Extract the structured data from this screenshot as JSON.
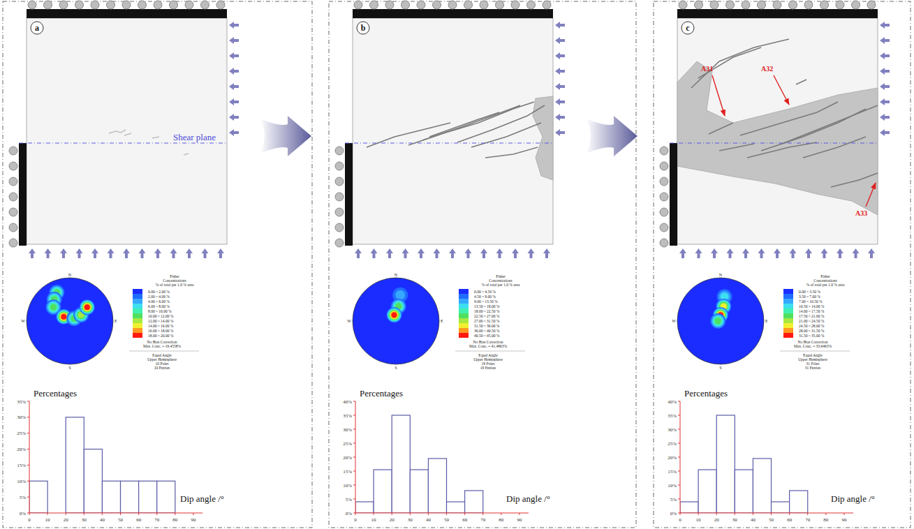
{
  "figure": {
    "panels": [
      {
        "letter": "a",
        "shear_plane_label": "Shear plane"
      },
      {
        "letter": "b"
      },
      {
        "letter": "c",
        "annotations": [
          "A31",
          "A32",
          "A33"
        ]
      }
    ]
  },
  "stereonets": [
    {
      "legend_title": [
        "Fisher",
        "Concentrations",
        "% of total per 1.0 % area"
      ],
      "legend_ranges": [
        "0.00 ~ 2.00 %",
        "2.00 ~ 4.00 %",
        "4.00 ~ 6.00 %",
        "6.00 ~ 8.00 %",
        "8.00 ~ 10.00 %",
        "10.00 ~ 12.00 %",
        "12.00 ~ 14.00 %",
        "14.00 ~ 16.00 %",
        "16.00 ~ 18.00 %",
        "18.00 ~ 20.00 %"
      ],
      "levels": [
        0,
        2,
        4,
        6,
        8,
        10,
        12,
        14,
        16,
        18,
        20
      ],
      "correction": "No Bias Correction",
      "max_conc": "Max. Conc. = 19.4558%",
      "projection": "Equal Angle",
      "hemisphere": "Upper Hemisphere",
      "poles": "10 Poles",
      "entries": "10 Entries",
      "directions": [
        "N",
        "E",
        "S",
        "W"
      ],
      "spots": [
        {
          "x": -0.3,
          "y": 0.66,
          "value": 10
        },
        {
          "x": -0.36,
          "y": 0.5,
          "value": 11
        },
        {
          "x": -0.38,
          "y": 0.32,
          "value": 10
        },
        {
          "x": -0.14,
          "y": 0.1,
          "value": 19
        },
        {
          "x": 0.1,
          "y": 0.06,
          "value": 10
        },
        {
          "x": 0.26,
          "y": 0.14,
          "value": 12
        },
        {
          "x": 0.4,
          "y": 0.32,
          "value": 19
        }
      ]
    },
    {
      "legend_title": [
        "Fisher",
        "Concentrations",
        "% of total per 1.0 % area"
      ],
      "legend_ranges": [
        "0.00 ~ 4.50 %",
        "4.50 ~ 9.00 %",
        "9.00 ~ 13.50 %",
        "13.50 ~ 18.00 %",
        "18.00 ~ 22.50 %",
        "22.50 ~ 27.00 %",
        "27.00 ~ 31.50 %",
        "31.50 ~ 36.00 %",
        "36.00 ~ 40.50 %",
        "40.50 ~ 45.00 %"
      ],
      "levels": [
        0,
        4.5,
        9,
        13.5,
        18,
        22.5,
        27,
        31.5,
        36,
        40.5,
        45
      ],
      "correction": "No Bias Correction",
      "max_conc": "Max. Conc. = 41.4863%",
      "projection": "Equal Angle",
      "hemisphere": "Upper Hemisphere",
      "poles": "19 Poles",
      "entries": "19 Entries",
      "directions": [
        "N",
        "E",
        "S",
        "W"
      ],
      "spots": [
        {
          "x": 0.1,
          "y": 0.6,
          "value": 12
        },
        {
          "x": 0.06,
          "y": 0.34,
          "value": 26
        },
        {
          "x": -0.04,
          "y": 0.14,
          "value": 41
        }
      ]
    },
    {
      "legend_title": [
        "Fisher",
        "Concentrations",
        "% of total per 1.0 % area"
      ],
      "legend_ranges": [
        "0.00 ~ 3.50 %",
        "3.50 ~ 7.00 %",
        "7.00 ~ 10.50 %",
        "10.50 ~ 14.00 %",
        "14.00 ~ 17.50 %",
        "17.50 ~ 21.00 %",
        "21.00 ~ 24.50 %",
        "24.50 ~ 28.00 %",
        "28.00 ~ 31.50 %",
        "31.50 ~ 35.00 %"
      ],
      "levels": [
        0,
        3.5,
        7,
        10.5,
        14,
        17.5,
        21,
        24.5,
        28,
        31.5,
        35
      ],
      "correction": "No Bias Correction",
      "max_conc": "Max. Conc. = 33.6463%",
      "projection": "Equal Angle",
      "hemisphere": "Upper Hemisphere",
      "poles": "31 Poles",
      "entries": "31 Entries",
      "directions": [
        "N",
        "E",
        "S",
        "W"
      ],
      "spots": [
        {
          "x": 0.09,
          "y": 0.56,
          "value": 12
        },
        {
          "x": 0.07,
          "y": 0.34,
          "value": 25
        },
        {
          "x": 0.0,
          "y": 0.14,
          "value": 33
        },
        {
          "x": -0.06,
          "y": 0.0,
          "value": 18
        }
      ]
    }
  ],
  "chart_data": [
    {
      "type": "histogram",
      "xlabel": "Dip angle /°",
      "ylabel": "Percentages",
      "bins": [
        0,
        10,
        20,
        30,
        40,
        50,
        60,
        70,
        80,
        90
      ],
      "values": [
        10,
        0,
        30,
        20,
        10,
        10,
        10,
        10,
        0
      ],
      "color": "#5b5ba8",
      "xlim": [
        0,
        95
      ],
      "xticks": [
        0,
        10,
        20,
        30,
        40,
        50,
        60,
        70,
        80,
        90
      ],
      "ylim": [
        0,
        35
      ],
      "yticks": [
        {
          "value": 0,
          "label": "0%"
        },
        {
          "value": 5,
          "label": "5%"
        },
        {
          "value": 10,
          "label": "10%"
        },
        {
          "value": 15,
          "label": "15%"
        },
        {
          "value": 20,
          "label": "20%"
        },
        {
          "value": 25,
          "label": "25%"
        },
        {
          "value": 30,
          "label": "30%"
        },
        {
          "value": 35,
          "label": "35%"
        }
      ]
    },
    {
      "type": "histogram",
      "xlabel": "Dip angle /°",
      "ylabel": "Percentages",
      "bins": [
        0,
        10,
        20,
        30,
        40,
        50,
        60,
        70,
        80,
        90
      ],
      "values": [
        4,
        15.5,
        35,
        15.5,
        19.5,
        4,
        8,
        0,
        0
      ],
      "color": "#5b5ba8",
      "xlim": [
        0,
        95
      ],
      "xticks": [
        0,
        10,
        20,
        30,
        40,
        50,
        60,
        70,
        80,
        90
      ],
      "ylim": [
        0,
        40
      ],
      "yticks": [
        {
          "value": 0,
          "label": "0%"
        },
        {
          "value": 5,
          "label": "5%"
        },
        {
          "value": 10,
          "label": "10%"
        },
        {
          "value": 15,
          "label": "15%"
        },
        {
          "value": 20,
          "label": "20%"
        },
        {
          "value": 25,
          "label": "25%"
        },
        {
          "value": 30,
          "label": "30%"
        },
        {
          "value": 35,
          "label": "35%"
        },
        {
          "value": 40,
          "label": "40%"
        }
      ]
    },
    {
      "type": "histogram",
      "xlabel": "Dip angle /°",
      "ylabel": "Percentages",
      "bins": [
        0,
        10,
        20,
        30,
        40,
        50,
        60,
        70,
        80,
        90
      ],
      "values": [
        4,
        15.5,
        35,
        15.5,
        19.5,
        4,
        8,
        0,
        0
      ],
      "color": "#5b5ba8",
      "xlim": [
        0,
        95
      ],
      "xticks": [
        0,
        10,
        20,
        30,
        40,
        50,
        60,
        70,
        80,
        90
      ],
      "ylim": [
        0,
        40
      ],
      "yticks": [
        {
          "value": 0,
          "label": "0%"
        },
        {
          "value": 5,
          "label": "5%"
        },
        {
          "value": 10,
          "label": "10%"
        },
        {
          "value": 15,
          "label": "15%"
        },
        {
          "value": 20,
          "label": "20%"
        },
        {
          "value": 25,
          "label": "25%"
        },
        {
          "value": 30,
          "label": "30%"
        },
        {
          "value": 35,
          "label": "35%"
        },
        {
          "value": 40,
          "label": "40%"
        }
      ]
    }
  ]
}
